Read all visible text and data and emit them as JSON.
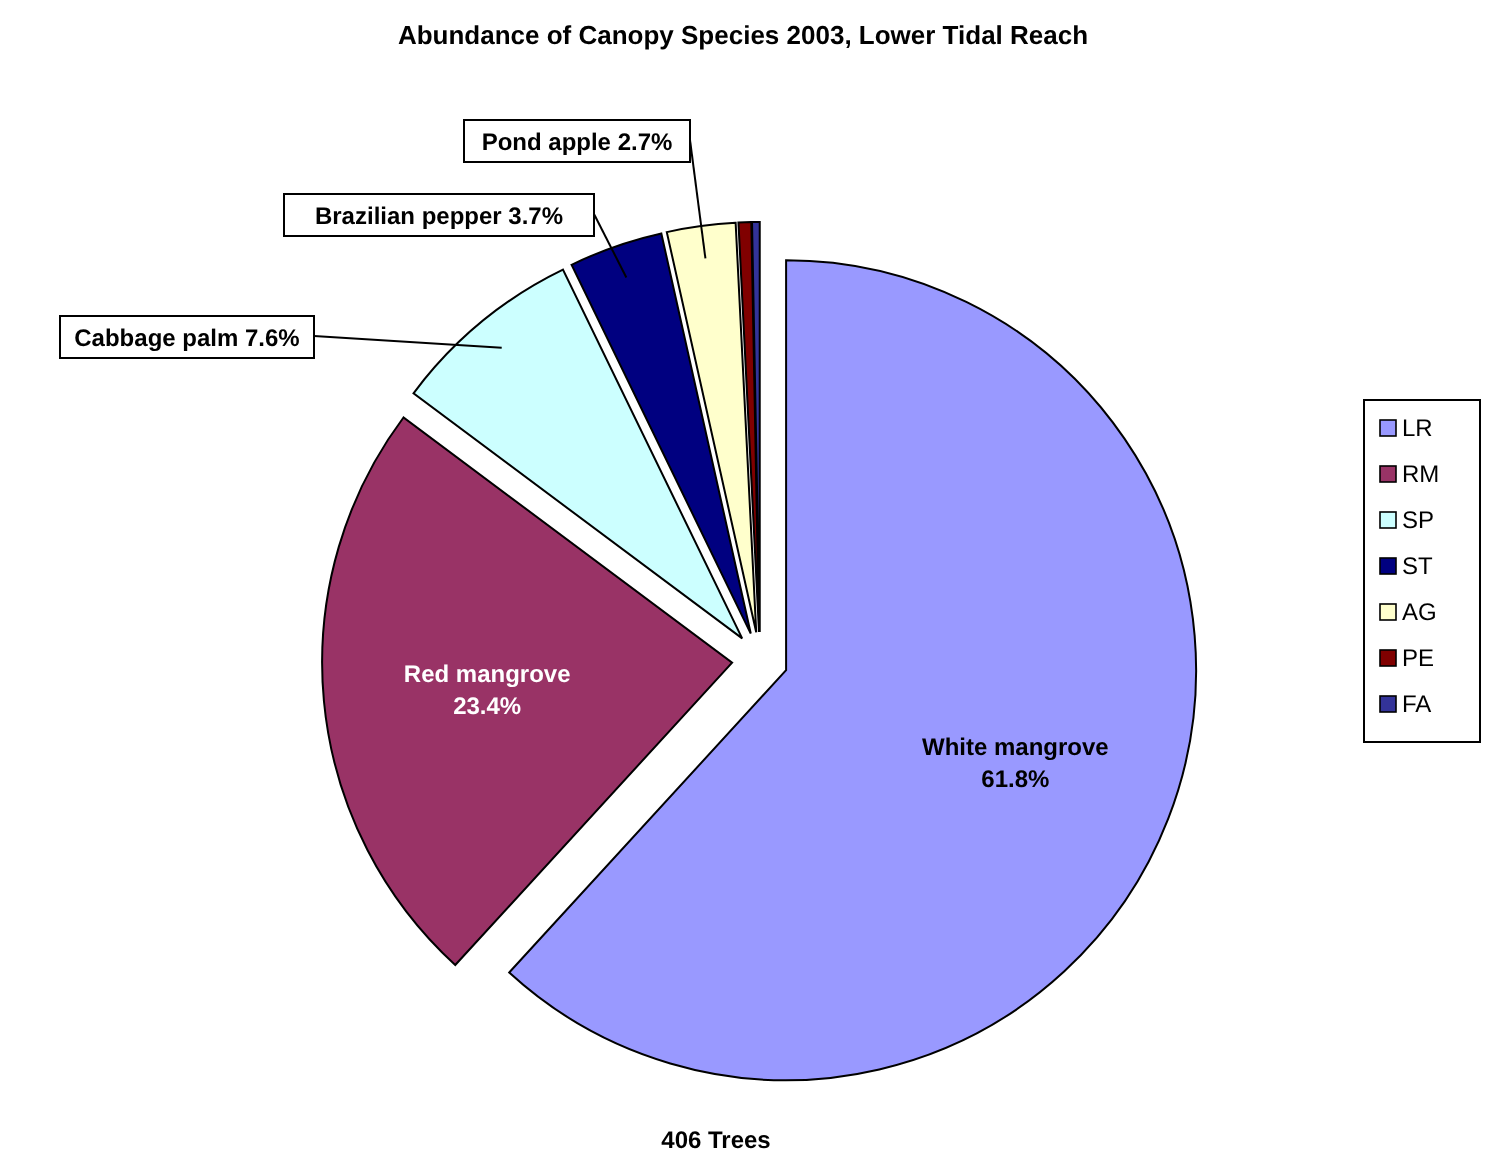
{
  "chart_data": {
    "type": "pie",
    "title": "Abundance of Canopy Species 2003, Lower Tidal Reach",
    "categories": [
      "LR",
      "RM",
      "SP",
      "ST",
      "AG",
      "PE",
      "FA"
    ],
    "values": [
      61.8,
      23.4,
      7.6,
      3.7,
      2.7,
      0.5,
      0.3
    ],
    "colors": [
      "#9999ff",
      "#993366",
      "#ccffff",
      "#000080",
      "#ffffcc",
      "#800000",
      "#333399"
    ],
    "value_labels": [
      "White mangrove 61.8%",
      "Red mangrove 23.4%",
      "Cabbage palm 7.6%",
      "Brazilian pepper 3.7%",
      "Pond apple 2.7%",
      null,
      null
    ],
    "annotations": [
      "406 Trees"
    ],
    "legend": "right"
  }
}
